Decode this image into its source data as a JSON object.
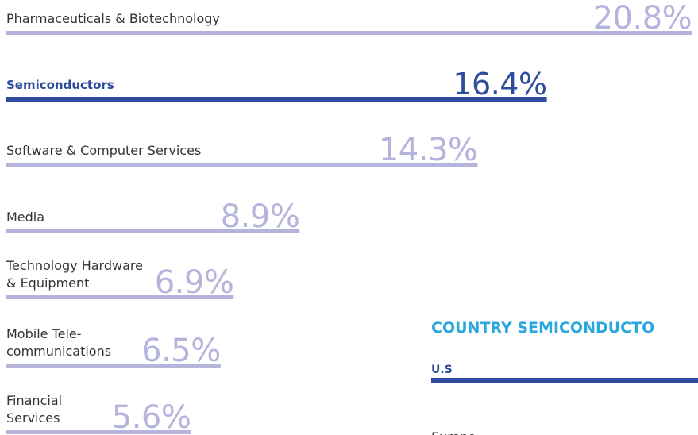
{
  "chart_data": [
    {
      "type": "hbar",
      "categories": [
        [
          "Pharmaceuticals & Biotechnology"
        ],
        [
          "Semiconductors"
        ],
        [
          "Software & Computer Services"
        ],
        [
          "Media"
        ],
        [
          "Technology Hardware",
          "& Equipment"
        ],
        [
          "Mobile Tele-",
          "communications"
        ],
        [
          "Financial",
          "Services"
        ]
      ],
      "values": [
        20.8,
        16.4,
        14.3,
        8.9,
        6.9,
        6.5,
        5.6
      ],
      "value_labels": [
        "20.8%",
        "16.4%",
        "14.3%",
        "8.9%",
        "6.9%",
        "6.5%",
        "5.6%"
      ],
      "color": "#b4b4dc",
      "highlight": 1,
      "highlight_color": "#2e4c9c"
    },
    {
      "type": "list",
      "title": "COUNTRY SEMICONDUCTO",
      "categories": [
        "U.S",
        "Europe"
      ],
      "color": "#2e4c9c",
      "title_color": "#2aa7df"
    }
  ]
}
